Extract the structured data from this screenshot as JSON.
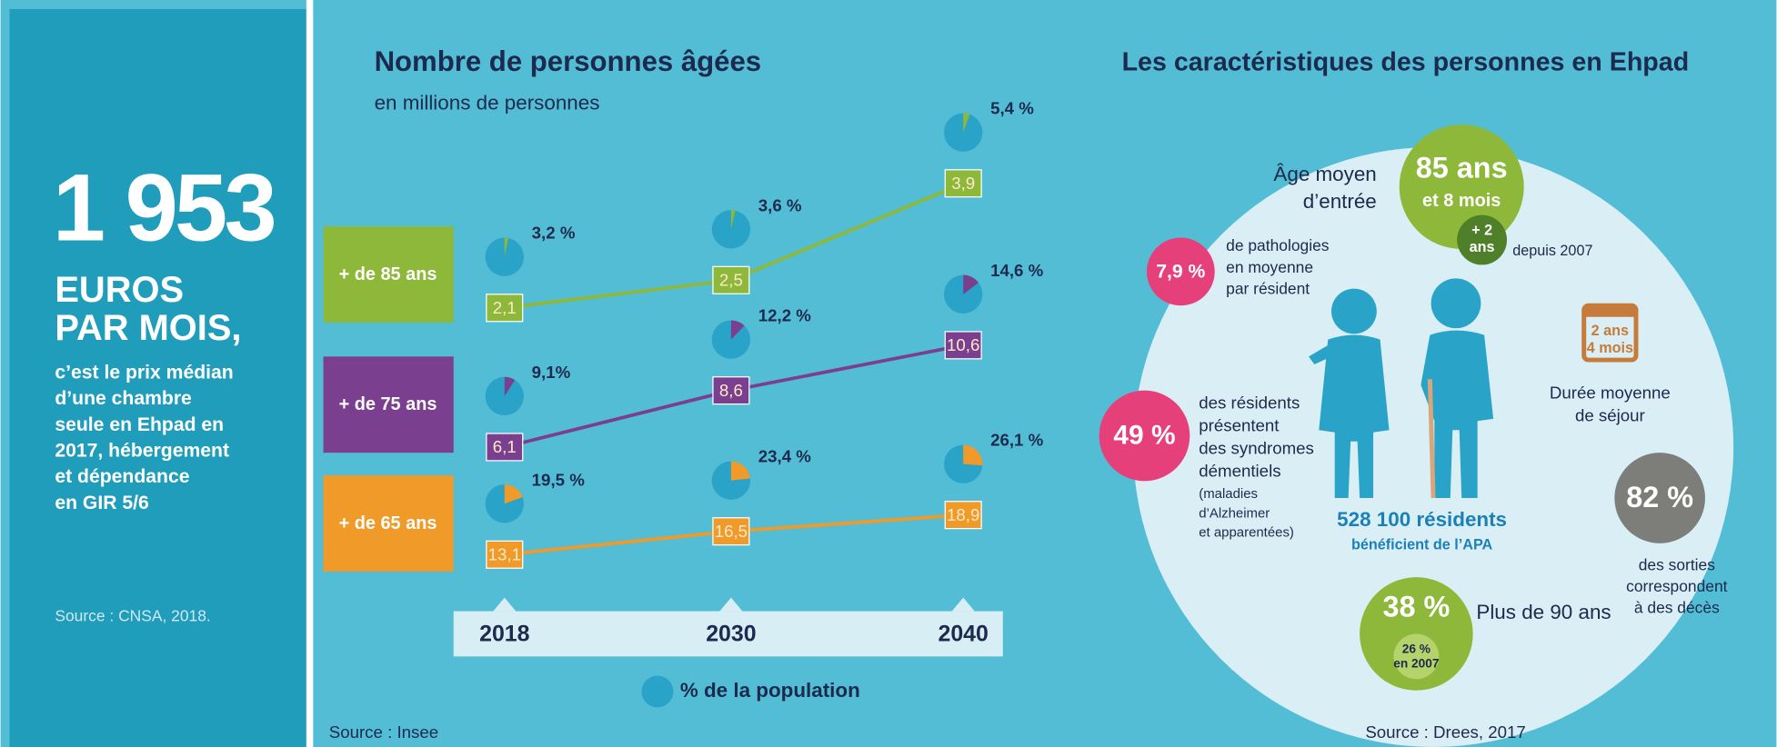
{
  "left_panel": {
    "amount": "1 953",
    "unit_lines": [
      "EUROS",
      "PAR MOIS,"
    ],
    "description_lines": [
      "c’est le prix médian",
      "d’une chambre",
      "seule en Ehpad en",
      "2017, hébergement",
      "et dépendance",
      "en GIR 5/6"
    ],
    "source": "Source : CNSA, 2018."
  },
  "chart_data": {
    "type": "line",
    "title": "Nombre de personnes âgées",
    "subtitle": "en millions de personnes",
    "categories": [
      "2018",
      "2030",
      "2040"
    ],
    "series": [
      {
        "name": "+ de 85 ans",
        "color": "#8db83a",
        "values": [
          2.1,
          2.5,
          3.9
        ],
        "value_labels": [
          "2,1",
          "2,5",
          "3,9"
        ],
        "shares": [
          3.2,
          3.6,
          5.4
        ],
        "share_labels": [
          "3,2 %",
          "3,6 %",
          "5,4 %"
        ]
      },
      {
        "name": "+ de 75 ans",
        "color": "#7b3f8f",
        "values": [
          6.1,
          8.6,
          10.6
        ],
        "value_labels": [
          "6,1",
          "8,6",
          "10,6"
        ],
        "shares": [
          9.1,
          12.2,
          14.6
        ],
        "share_labels": [
          "9,1%",
          "12,2 %",
          "14,6 %"
        ]
      },
      {
        "name": "+ de 65 ans",
        "color": "#f09a2a",
        "values": [
          13.1,
          16.5,
          18.9
        ],
        "value_labels": [
          "13,1",
          "16,5",
          "18,9"
        ],
        "shares": [
          19.5,
          23.4,
          26.1
        ],
        "share_labels": [
          "19,5 %",
          "23,4 %",
          "26,1 %"
        ]
      }
    ],
    "share_legend": "% de la population",
    "share_base_color": "#2aa3c8",
    "source": "Source : Insee"
  },
  "right_panel": {
    "title": "Les caractéristiques des personnes en Ehpad",
    "age_label_lines": [
      "Âge moyen",
      "d’entrée"
    ],
    "age_value": "85 ans",
    "age_value_sub": "et 8 mois",
    "age_change_lines": [
      "+ 2",
      "ans"
    ],
    "age_change_note": "depuis 2007",
    "pathologies_value": "7,9 %",
    "pathologies_lines": [
      "de pathologies",
      "en moyenne",
      "par résident"
    ],
    "dementia_value": "49 %",
    "dementia_lines": [
      "des résidents",
      "présentent",
      "des syndromes",
      "démentiels"
    ],
    "dementia_note_lines": [
      "(maladies",
      "d’Alzheimer",
      "et apparentées)"
    ],
    "apa_value": "528 100 résidents",
    "apa_note": "bénéficient de l’APA",
    "stay_icon_lines": [
      "2 ans",
      "4 mois"
    ],
    "stay_lines": [
      "Durée moyenne",
      "de séjour"
    ],
    "deaths_value": "82 %",
    "deaths_lines": [
      "des sorties",
      "correspondent",
      "à des décès"
    ],
    "over90_value": "38 %",
    "over90_label": "Plus de 90 ans",
    "over90_past_lines": [
      "26 %",
      "en 2007"
    ],
    "source": "Source : Drees, 2017"
  }
}
